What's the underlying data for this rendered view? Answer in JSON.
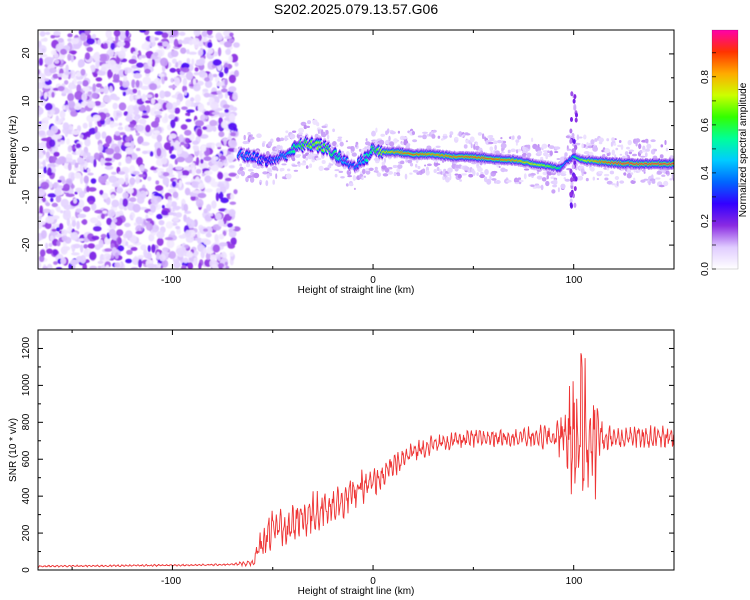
{
  "figure": {
    "title": "S202.2025.079.13.57.G06"
  },
  "chart_data": [
    {
      "type": "heatmap",
      "xlabel": "Height of straight line (km)",
      "ylabel": "Frequency (Hz)",
      "xlim": [
        -167,
        150
      ],
      "ylim": [
        -25,
        25
      ],
      "xticks": [
        "-100",
        "0",
        "100"
      ],
      "yticks": [
        "-20",
        "-10",
        "0",
        "10",
        "20"
      ],
      "colorbar": {
        "label": "Normalized spectral amplitude",
        "range": [
          0,
          1
        ],
        "ticks": [
          "0.0",
          "0.2",
          "0.4",
          "0.6",
          "0.8"
        ],
        "colors": [
          "#ffffff",
          "#e0ccff",
          "#8a2be2",
          "#3300ff",
          "#0066ff",
          "#00ccff",
          "#00ff99",
          "#33ff00",
          "#ccff00",
          "#ffaa00",
          "#ff3300",
          "#ff00aa"
        ]
      },
      "noise_region": {
        "x_range": [
          -167,
          -68
        ],
        "peak_amplitude": 0.25
      },
      "ridge": {
        "x": [
          -67,
          -60,
          -52,
          -45,
          -38,
          -33,
          -28,
          -22,
          -16,
          -10,
          -4,
          0,
          5,
          12,
          20,
          30,
          40,
          50,
          60,
          70,
          80,
          88,
          93,
          97,
          100,
          105,
          112,
          120,
          130,
          140,
          150
        ],
        "freq": [
          -1,
          -1.5,
          -2.5,
          -1.5,
          0.5,
          1.2,
          1,
          0,
          -2,
          -3.5,
          -2,
          0,
          -0.5,
          -0.5,
          -1,
          -1,
          -1.5,
          -1.5,
          -2,
          -2.2,
          -3,
          -3.5,
          -4,
          -2.5,
          -1.5,
          -2.3,
          -2.5,
          -2.8,
          -3,
          -3,
          -3
        ],
        "amplitude": [
          0.45,
          0.4,
          0.35,
          0.45,
          0.55,
          0.65,
          0.7,
          0.6,
          0.5,
          0.4,
          0.5,
          0.55,
          0.75,
          0.85,
          0.9,
          0.85,
          0.88,
          0.9,
          0.9,
          0.85,
          0.75,
          0.65,
          0.55,
          0.4,
          0.5,
          0.7,
          0.85,
          0.95,
          0.95,
          0.95,
          0.95
        ]
      }
    },
    {
      "type": "line",
      "xlabel": "Height of straight line (km)",
      "ylabel": "SNR (10 * v/v)",
      "xlim": [
        -167,
        150
      ],
      "ylim": [
        0,
        1300
      ],
      "xticks": [
        "-100",
        "0",
        "100"
      ],
      "yticks": [
        "0",
        "200",
        "400",
        "600",
        "800",
        "1000",
        "1200"
      ],
      "color": "#ee3333",
      "series": [
        {
          "x": [
            -167,
            -140,
            -110,
            -80,
            -70,
            -60,
            -55,
            -50,
            -45,
            -40,
            -35,
            -30,
            -25,
            -20,
            -15,
            -10,
            -5,
            0,
            10,
            20,
            30,
            40,
            50,
            60,
            70,
            80,
            90,
            95,
            100,
            103,
            106,
            110,
            115,
            120,
            130,
            140,
            150
          ],
          "values": [
            20,
            22,
            25,
            28,
            30,
            40,
            150,
            250,
            200,
            250,
            280,
            300,
            330,
            360,
            380,
            420,
            450,
            470,
            560,
            640,
            680,
            700,
            710,
            720,
            720,
            720,
            720,
            740,
            700,
            800,
            700,
            730,
            710,
            720,
            720,
            720,
            720
          ],
          "noise_amplitude": [
            5,
            5,
            5,
            5,
            5,
            20,
            120,
            120,
            110,
            120,
            120,
            120,
            110,
            110,
            100,
            100,
            90,
            80,
            70,
            60,
            50,
            50,
            50,
            50,
            50,
            60,
            80,
            150,
            350,
            450,
            500,
            400,
            80,
            60,
            60,
            60,
            60
          ]
        }
      ]
    }
  ]
}
